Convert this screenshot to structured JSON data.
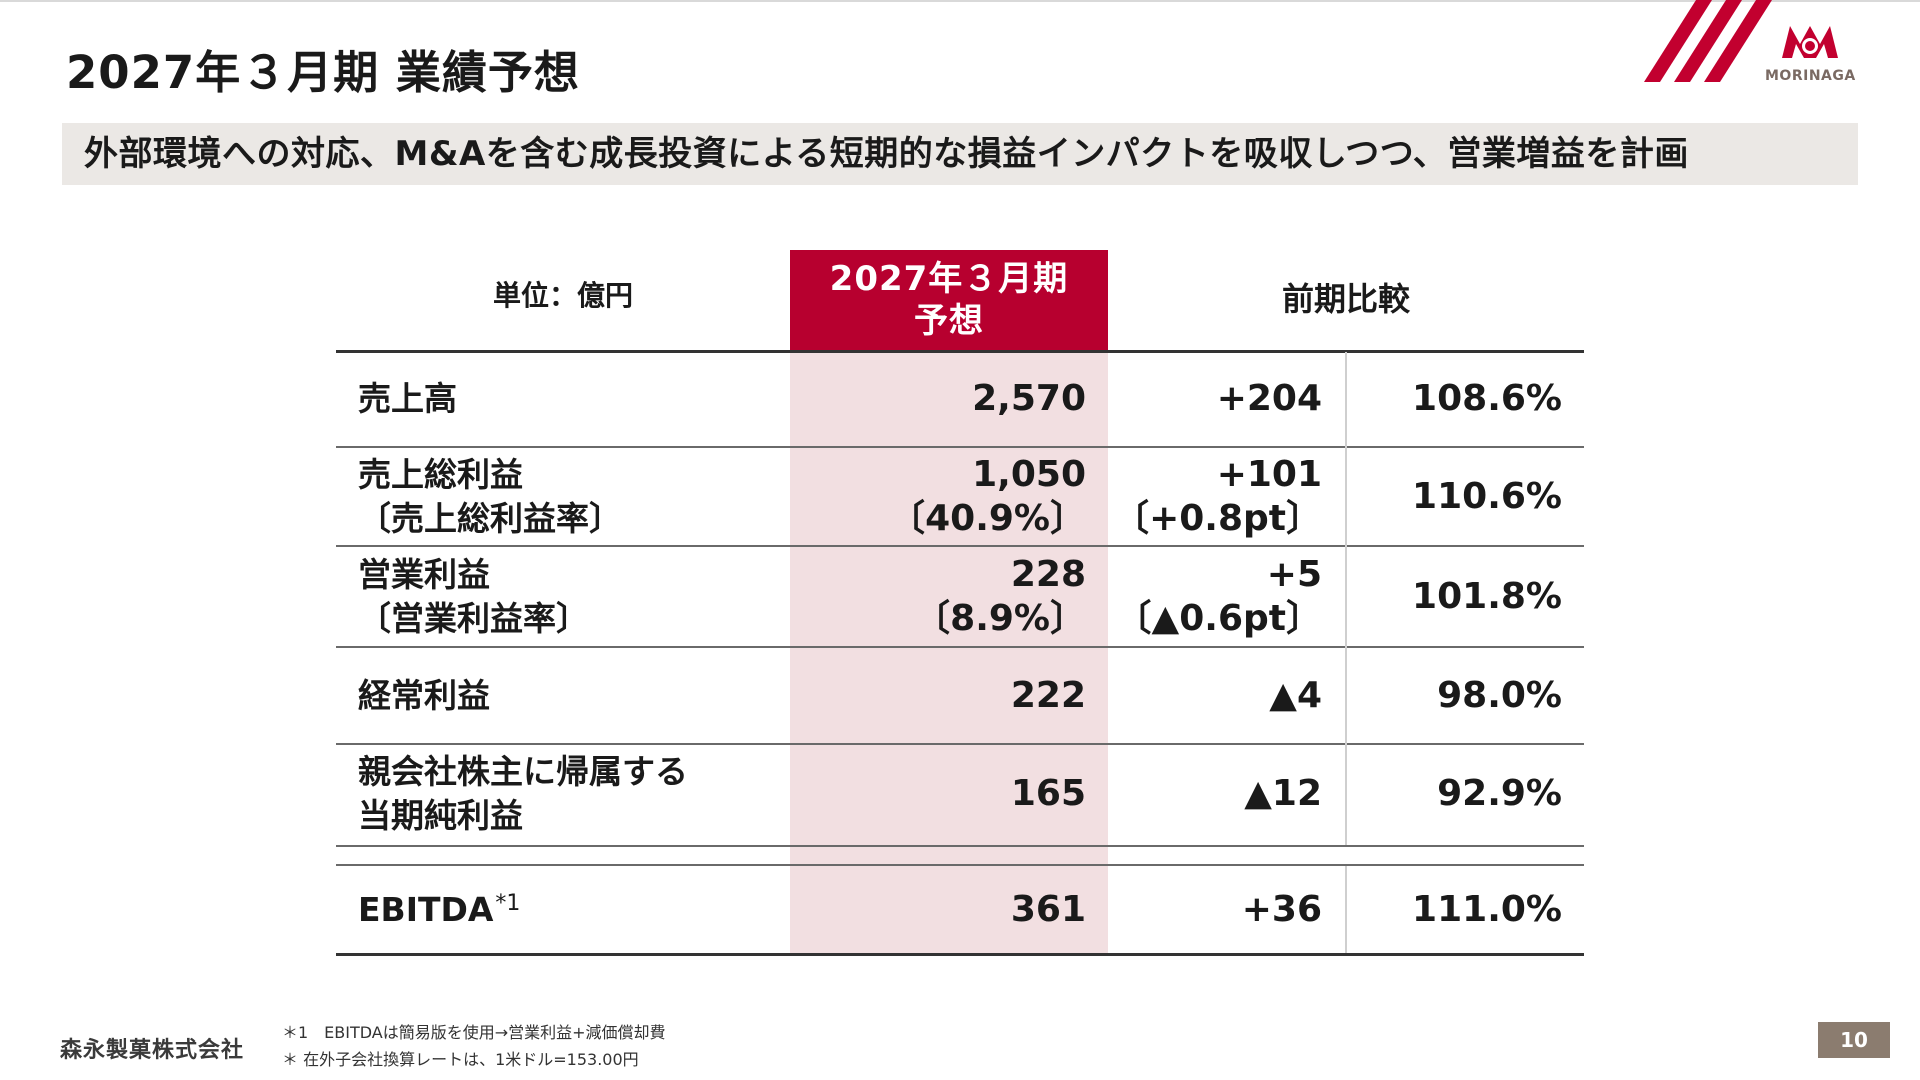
{
  "header": {
    "title": "2027年３月期 業績予想",
    "subtitle": "外部環境への対応、M&Aを含む成長投資による短期的な損益インパクトを吸収しつつ、営業増益を計画",
    "logo_text": "MORINAGA"
  },
  "table": {
    "unit_label": "単位：億円",
    "forecast_header_line1": "2027年３月期",
    "forecast_header_line2": "予想",
    "compare_header": "前期比較",
    "rows": [
      {
        "label": "売上高",
        "forecast": "2,570",
        "diff": "+204",
        "pct": "108.6%"
      },
      {
        "label": "売上総利益",
        "label_sub": "〔売上総利益率〕",
        "forecast": "1,050",
        "forecast_sub": "〔40.9%〕",
        "diff": "+101",
        "diff_sub": "〔+0.8pt〕",
        "pct": "110.6%"
      },
      {
        "label": "営業利益",
        "label_sub": "〔営業利益率〕",
        "forecast": "228",
        "forecast_sub": "〔8.9%〕",
        "diff": "+5",
        "diff_sub": "〔▲0.6pt〕",
        "pct": "101.8%"
      },
      {
        "label": "経常利益",
        "forecast": "222",
        "diff": "▲4",
        "pct": "98.0%"
      },
      {
        "label": "親会社株主に帰属する",
        "label_sub": "当期純利益",
        "forecast": "165",
        "diff": "▲12",
        "pct": "92.9%"
      },
      {
        "label": "EBITDA",
        "label_note": "*1",
        "forecast": "361",
        "diff": "+36",
        "pct": "111.0%"
      }
    ]
  },
  "footer": {
    "company": "森永製菓株式会社",
    "footnote1": "＊1　EBITDAは簡易版を使用→営業利益+減価償却費",
    "footnote2": "＊ 在外子会社換算レートは、1米ドル=153.00円",
    "page_number": "10"
  },
  "colors": {
    "accent": "#b7002f",
    "highlight": "#f2dfe1",
    "subtitle_bg": "#ebe8e5",
    "page_box": "#8b7c6f"
  }
}
